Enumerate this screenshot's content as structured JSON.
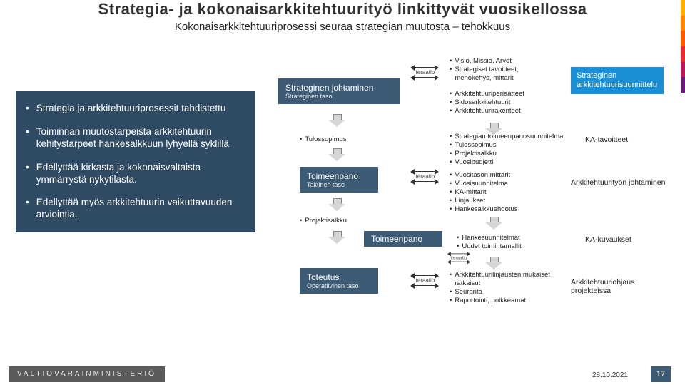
{
  "stripe_colors": [
    "#ffb000",
    "#ff8a00",
    "#ff5a00",
    "#e52e2e",
    "#b71c5a",
    "#6a1b7a"
  ],
  "title": "Strategia- ja kokonaisarkkitehtuurityö linkittyvät vuosikellossa",
  "subtitle": "Kokonaisarkkitehtuuriprosessi seuraa strategian muutosta – tehokkuus",
  "bullets": [
    "Strategia ja arkkitehtuuriprosessit tahdistettu",
    "Toiminnan muutostarpeista arkkitehtuurin kehitystarpeet hankesalkkuun lyhyellä syklillä",
    "Edellyttää kirkasta ja kokonaisvaltaista ymmärrystä nykytilasta.",
    "Edellyttää myös arkkitehtuurin vaikuttavuuden arviointia."
  ],
  "boxes": {
    "strateginen": {
      "title": "Strateginen johtaminen",
      "sub": "Strateginen taso"
    },
    "toimeenpano1": {
      "title": "Toimeenpano",
      "sub": "Taktinen taso"
    },
    "toimeenpano2": {
      "title": "Toimeenpano",
      "sub": ""
    },
    "toteutus": {
      "title": "Toteutus",
      "sub": "Operatiivinen taso"
    },
    "strat_arkk": "Strateginen arkkitehtuurisuunnittelu"
  },
  "lists": {
    "l1": [
      "Visio, Missio, Arvot",
      "Strategiset tavoitteet, menokehys, mittarit"
    ],
    "l2": [
      "Arkkitehtuuriperiaatteet",
      "Sidosarkkitehtuurit",
      "Arkkitehtuurirakenteet"
    ],
    "l3": [
      "Tulossopimus"
    ],
    "l4": [
      "Strategian toimeenpanosuunnitelma",
      "Tulossopimus",
      "Projektisalkku",
      "Vuosibudjetti"
    ],
    "l5": [
      "Vuositason mittarit",
      "Vuosisuunnitelma",
      "KA-mittarit",
      "Linjaukset",
      "Hankesalkkuehdotus"
    ],
    "l6": [
      "Projektisalkku"
    ],
    "l7": [
      "Hankesuunnitelmat",
      "Uudet toimintamallit"
    ],
    "l8": [
      "Arkkitehtuurilinjausten mukaiset ratkaisut",
      "Seuranta",
      "Raportointi, poikkeamat"
    ]
  },
  "sidelabels": {
    "ka_tavoitteet": "KA-tavoitteet",
    "ark_joht": "Arkkitehtuurityön johtaminen",
    "ka_kuv": "KA-kuvaukset",
    "ark_ohj": "Arkkitehtuuriohjaus projekteissa"
  },
  "iter": "iteraatio",
  "footer": {
    "ministry": "VALTIOVARAINMINISTERIÖ",
    "date": "28.10.2021",
    "page": "17"
  },
  "colors": {
    "panel": "#2f4a63",
    "box": "#3d5b74",
    "accent": "#1a8fd6",
    "footer_bg": "#5a5a5a",
    "arrow": "#d6d6d6"
  }
}
